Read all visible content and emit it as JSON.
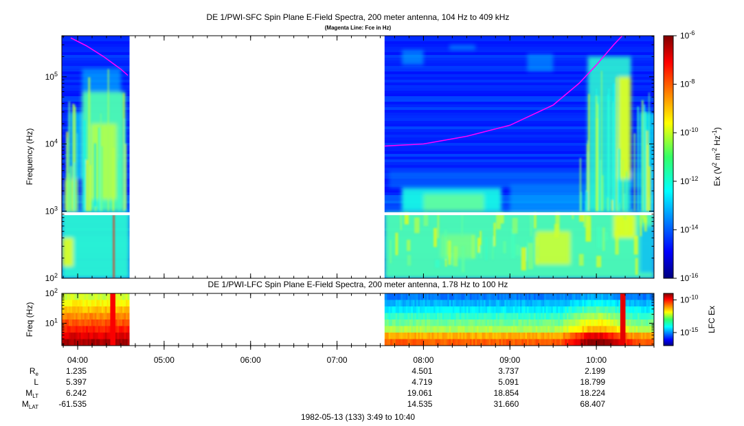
{
  "chart_data": [
    {
      "type": "heatmap",
      "title": "DE 1/PWI-SFC  Spin Plane E-Field Spectra, 200 meter antenna, 104 Hz to 409 kHz",
      "subtitle": "(Magenta Line: Fce in Hz)",
      "ylabel": "Frequency (Hz)",
      "yscale": "log",
      "ylim": [
        100,
        409000
      ],
      "yticks": [
        {
          "value": 100,
          "base": "10",
          "exp": "2"
        },
        {
          "value": 1000,
          "base": "10",
          "exp": "3"
        },
        {
          "value": 10000,
          "base": "10",
          "exp": "4"
        },
        {
          "value": 100000,
          "base": "10",
          "exp": "5"
        }
      ],
      "data_gap_hours": [
        4.6,
        7.55
      ],
      "gap_band_hz": [
        870,
        960
      ],
      "fce_line": {
        "name": "Fce",
        "color": "#ff00ff",
        "segments": [
          [
            [
              3.92,
              380000
            ],
            [
              4.1,
              290000
            ],
            [
              4.3,
              200000
            ],
            [
              4.5,
              130000
            ],
            [
              4.58,
              105000
            ]
          ],
          [
            [
              7.55,
              9300
            ],
            [
              8.0,
              10000
            ],
            [
              8.5,
              13000
            ],
            [
              9.0,
              19000
            ],
            [
              9.5,
              38000
            ],
            [
              9.8,
              80000
            ],
            [
              10.0,
              150000
            ],
            [
              10.2,
              300000
            ],
            [
              10.3,
              409000
            ]
          ]
        ]
      },
      "colorbar": {
        "label_parts": [
          "Ex (V",
          "2",
          " m",
          "-2",
          " Hz",
          "-1",
          ")"
        ],
        "scale": "log",
        "range": [
          1e-16,
          1e-06
        ],
        "ticks": [
          {
            "value": 1e-06,
            "base": "10",
            "exp": "-6"
          },
          {
            "value": 1e-08,
            "base": "10",
            "exp": "-8"
          },
          {
            "value": 1e-10,
            "base": "10",
            "exp": "-10"
          },
          {
            "value": 1e-12,
            "base": "10",
            "exp": "-12"
          },
          {
            "value": 1e-14,
            "base": "10",
            "exp": "-14"
          },
          {
            "value": 1e-16,
            "base": "10",
            "exp": "-16"
          }
        ]
      }
    },
    {
      "type": "heatmap",
      "title": "DE 1/PWI-LFC  Spin Plane E-Field Spectra, 200 meter antenna, 1.78 Hz to 100 Hz",
      "ylabel": "Freq (Hz)",
      "yscale": "log",
      "ylim": [
        1.78,
        100
      ],
      "yticks": [
        {
          "value": 10,
          "base": "10",
          "exp": "1"
        },
        {
          "value": 100,
          "base": "10",
          "exp": "2"
        }
      ],
      "data_gap_hours": [
        4.6,
        7.55
      ],
      "colorbar": {
        "label": "LFC Ex",
        "scale": "log",
        "ticks": [
          {
            "value": 1e-10,
            "base": "10",
            "exp": "-10"
          },
          {
            "value": 1e-15,
            "base": "10",
            "exp": "-15"
          }
        ]
      }
    }
  ],
  "time_axis": {
    "range_hours": [
      3.8167,
      10.6667
    ],
    "ticks": [
      {
        "hour": 4,
        "label": "04:00"
      },
      {
        "hour": 5,
        "label": "05:00"
      },
      {
        "hour": 6,
        "label": "06:00"
      },
      {
        "hour": 7,
        "label": "07:00"
      },
      {
        "hour": 8,
        "label": "08:00"
      },
      {
        "hour": 9,
        "label": "09:00"
      },
      {
        "hour": 10,
        "label": "10:00"
      }
    ]
  },
  "ephemeris": {
    "rows": [
      {
        "label": "R",
        "sub": "e",
        "values": [
          "1.235",
          "",
          "",
          "",
          "4.501",
          "3.737",
          "2.199"
        ]
      },
      {
        "label": "L",
        "sub": "",
        "values": [
          "5.397",
          "",
          "",
          "",
          "4.719",
          "5.091",
          "18.799"
        ]
      },
      {
        "label": "M",
        "sub": "LT",
        "values": [
          "6.242",
          "",
          "",
          "",
          "19.061",
          "18.854",
          "18.224"
        ]
      },
      {
        "label": "M",
        "sub": "LAT",
        "values": [
          "-61.535",
          "",
          "",
          "",
          "14.535",
          "31.660",
          "68.407"
        ]
      }
    ]
  },
  "footer": "1982-05-13 (133) 3:49 to 10:40"
}
